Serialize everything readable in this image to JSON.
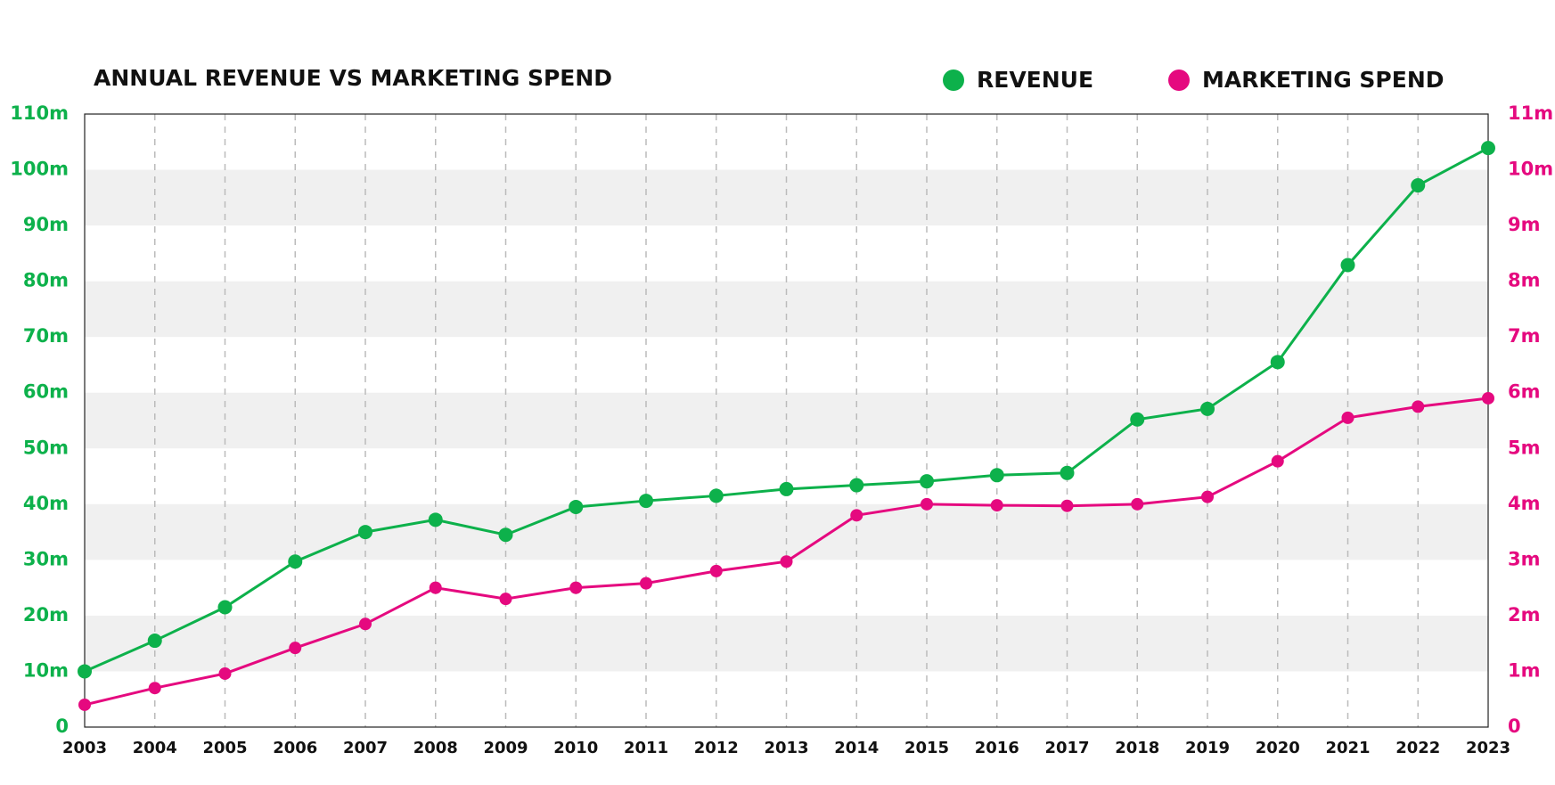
{
  "chart_data": {
    "type": "line",
    "title": "ANNUAL REVENUE VS MARKETING SPEND",
    "categories": [
      "2003",
      "2004",
      "2005",
      "2006",
      "2007",
      "2008",
      "2009",
      "2010",
      "2011",
      "2012",
      "2013",
      "2014",
      "2015",
      "2016",
      "2017",
      "2018",
      "2019",
      "2020",
      "2021",
      "2022",
      "2023"
    ],
    "series": [
      {
        "name": "REVENUE",
        "color": "#0db14b",
        "values": [
          10,
          15.5,
          21.5,
          29.7,
          35,
          37.2,
          34.5,
          39.5,
          40.6,
          41.5,
          42.7,
          43.4,
          44.1,
          45.2,
          45.6,
          55.2,
          57.1,
          65.5,
          82.9,
          97.2,
          103.9
        ]
      },
      {
        "name": "MARKETING SPEND",
        "color": "#e5097f",
        "axis": "y2",
        "values": [
          0.4,
          0.7,
          0.96,
          1.42,
          1.85,
          2.5,
          2.3,
          2.5,
          2.58,
          2.8,
          2.97,
          3.8,
          4.0,
          3.98,
          3.97,
          4.0,
          4.13,
          4.77,
          5.55,
          5.75,
          5.9
        ]
      }
    ],
    "ylim": [
      0,
      110
    ],
    "yticks": [
      0,
      {
        "value": 10,
        "label": "10m"
      },
      {
        "value": 20,
        "label": "20m"
      },
      {
        "value": 30,
        "label": "30m"
      },
      {
        "value": 40,
        "label": "40m"
      },
      {
        "value": 50,
        "label": "50m"
      },
      {
        "value": 60,
        "label": "60m"
      },
      {
        "value": 70,
        "label": "70m"
      },
      {
        "value": 80,
        "label": "80m"
      },
      {
        "value": 90,
        "label": "90m"
      },
      {
        "value": 100,
        "label": "100m"
      },
      {
        "value": 110,
        "label": "110m"
      }
    ],
    "y2lim": [
      0,
      11
    ],
    "y2ticks": [
      0,
      {
        "value": 1,
        "label": "1m"
      },
      {
        "value": 2,
        "label": "2m"
      },
      {
        "value": 3,
        "label": "3m"
      },
      {
        "value": 4,
        "label": "4m"
      },
      {
        "value": 5,
        "label": "5m"
      },
      {
        "value": 6,
        "label": "6m"
      },
      {
        "value": 7,
        "label": "7m"
      },
      {
        "value": 8,
        "label": "8m"
      },
      {
        "value": 9,
        "label": "9m"
      },
      {
        "value": 10,
        "label": "10m"
      },
      {
        "value": 11,
        "label": "11m"
      }
    ],
    "grid": true
  }
}
